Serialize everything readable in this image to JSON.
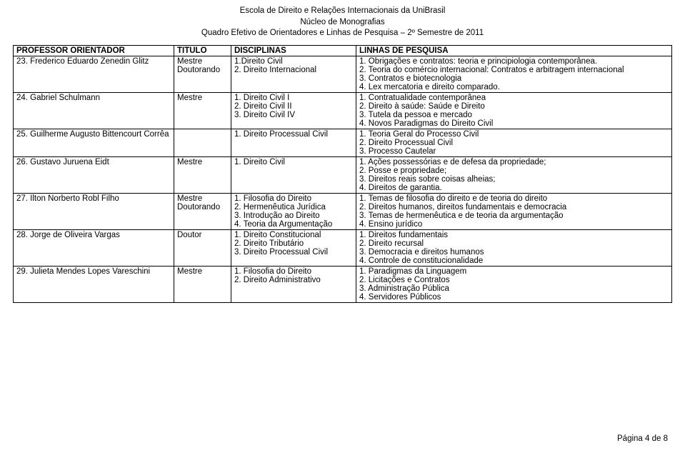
{
  "header": {
    "line1": "Escola de Direito e Relações Internacionais da UniBrasil",
    "line2": "Núcleo de Monografias",
    "line3": "Quadro Efetivo de Orientadores e Linhas de Pesquisa – 2º Semestre de 2011"
  },
  "columns": {
    "c1": "PROFESSOR ORIENTADOR",
    "c2": "TITULO",
    "c3": "DISCIPLINAS",
    "c4": "LINHAS DE PESQUISA"
  },
  "rows": {
    "r23": {
      "prof": "23. Frederico Eduardo Zenedin Glitz",
      "tit": "Mestre\nDoutorando",
      "disc": "1.Direito Civil\n2. Direito Internacional",
      "lin": "1. Obrigações e contratos: teoria e principiologia contemporânea.\n2. Teoria do comércio internacional: Contratos e arbitragem internacional\n3. Contratos e biotecnologia\n4. Lex mercatoria e direito comparado."
    },
    "r24": {
      "prof": "24. Gabriel Schulmann",
      "tit": "Mestre",
      "disc": "1. Direito Civil I\n2. Direito Civil II\n3. Direito Civil IV",
      "lin": "1. Contratualidade contemporânea\n2. Direito à saúde: Saúde e Direito\n3. Tutela da pessoa e mercado\n4. Novos Paradigmas do Direito Civil"
    },
    "r25": {
      "prof": "25. Guilherme Augusto Bittencourt Corrêa",
      "tit": "",
      "disc": "1. Direito Processual Civil",
      "lin": "1. Teoria Geral do Processo Civil\n2. Direito Processual Civil\n3. Processo Cautelar"
    },
    "r26": {
      "prof": "26. Gustavo Juruena Eidt",
      "tit": "Mestre",
      "disc": "1. Direito Civil",
      "lin": "1. Ações possessórias e de defesa da propriedade;\n2. Posse e propriedade;\n3. Direitos reais sobre coisas alheias;\n4. Direitos de garantia."
    },
    "r27": {
      "prof": "27. Ilton Norberto Robl Filho",
      "tit": "Mestre\nDoutorando",
      "disc": "1. Filosofia do Direito\n2. Hermenêutica Jurídica\n3. Introdução ao Direito\n4. Teoria da Argumentação",
      "lin": "1. Temas de filosofia do direito e de teoria do direito\n2. Direitos humanos, direitos fundamentais e democracia\n3. Temas de hermenêutica e de teoria da argumentação\n4. Ensino jurídico"
    },
    "r28": {
      "prof": "28. Jorge de Oliveira Vargas",
      "tit": "Doutor",
      "disc": "1. Direito Constitucional\n2. Direito Tributário\n3. Direito Processual Civil",
      "lin": "1. Direitos fundamentais\n2. Direito recursal\n3. Democracia e direitos humanos\n4. Controle de constitucionalidade"
    },
    "r29": {
      "prof": "29. Julieta Mendes Lopes Vareschini",
      "tit": "Mestre",
      "disc": "1. Filosofia do Direito\n2. Direito Administrativo",
      "lin": "1. Paradigmas da Linguagem\n2. Licitações e Contratos\n3. Administração Pública\n4. Servidores Públicos"
    }
  },
  "footer": {
    "page": "Página 4 de 8"
  }
}
